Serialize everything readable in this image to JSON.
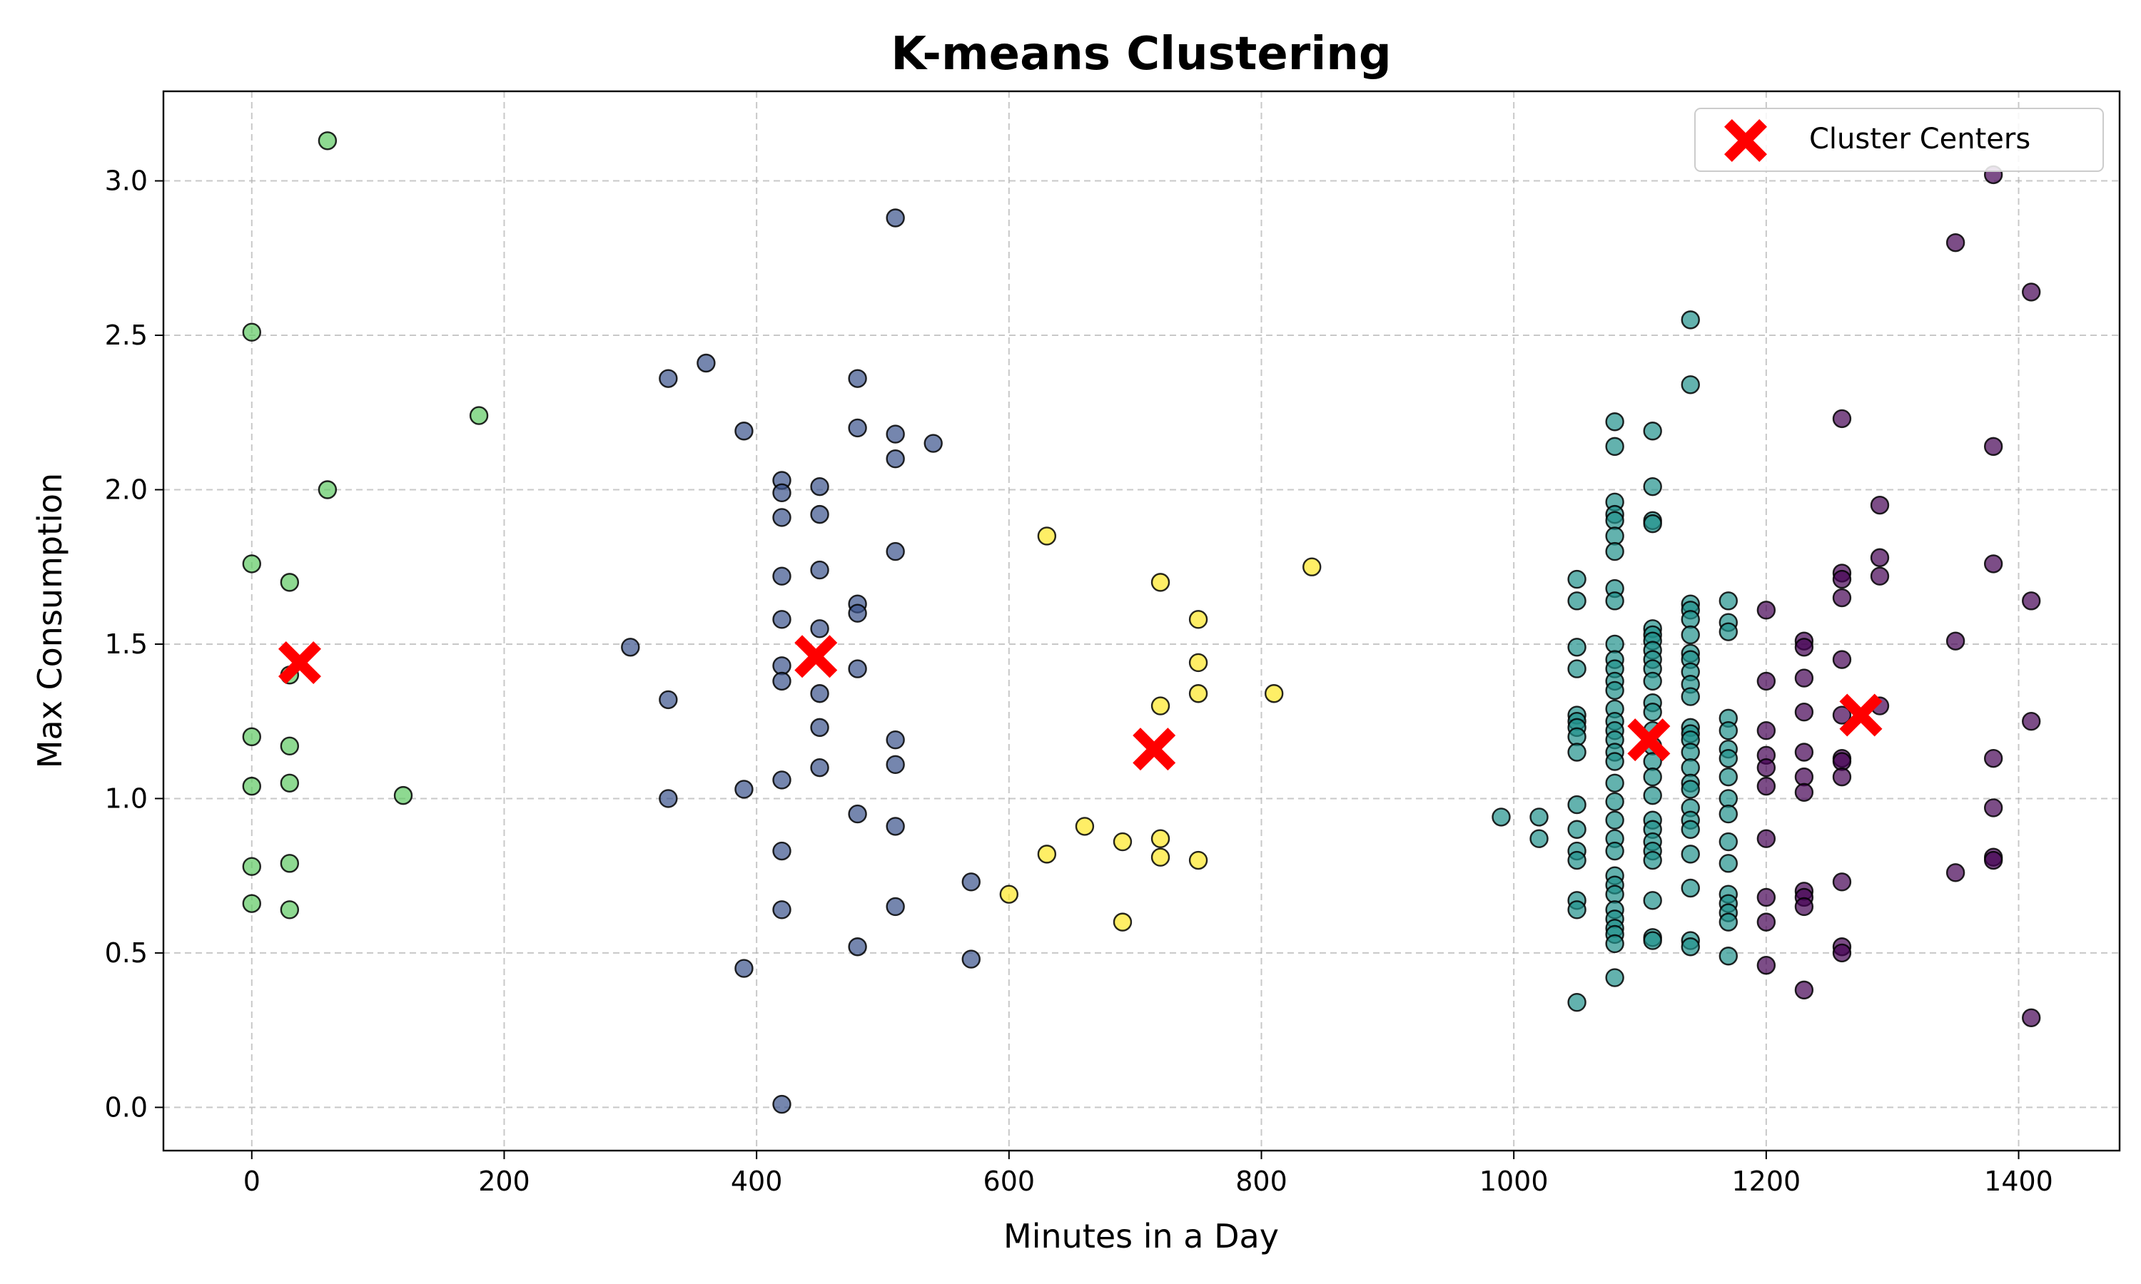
{
  "chart_data": {
    "type": "scatter",
    "title": "K-means Clustering",
    "xlabel": "Minutes in a Day",
    "ylabel": "Max Consumption",
    "xlim": [
      -70,
      1480
    ],
    "ylim": [
      -0.14,
      3.29
    ],
    "x_ticks": [
      0,
      200,
      400,
      600,
      800,
      1000,
      1200,
      1400
    ],
    "y_ticks": [
      0.0,
      0.5,
      1.0,
      1.5,
      2.0,
      2.5,
      3.0
    ],
    "x_tick_labels": [
      "0",
      "200",
      "400",
      "600",
      "800",
      "1000",
      "1200",
      "1400"
    ],
    "y_tick_labels": [
      "0.0",
      "0.5",
      "1.0",
      "1.5",
      "2.0",
      "2.5",
      "3.0"
    ],
    "grid": true,
    "legend": {
      "position": "top-right",
      "entries": [
        "Cluster Centers"
      ]
    },
    "colors": {
      "cluster_0": "#440154",
      "cluster_1": "#3b528b",
      "cluster_2": "#21918c",
      "cluster_3": "#5ec962",
      "cluster_4": "#fde725",
      "centers": "#ff0000"
    },
    "clusters": [
      {
        "color_key": "cluster_3",
        "points": [
          [
            60,
            3.13
          ],
          [
            0,
            2.51
          ],
          [
            180,
            2.24
          ],
          [
            60,
            2.0
          ],
          [
            0,
            1.76
          ],
          [
            30,
            1.7
          ],
          [
            30,
            1.4
          ],
          [
            0,
            1.2
          ],
          [
            30,
            1.17
          ],
          [
            30,
            1.05
          ],
          [
            0,
            1.04
          ],
          [
            120,
            1.01
          ],
          [
            0,
            0.78
          ],
          [
            30,
            0.79
          ],
          [
            0,
            0.66
          ],
          [
            30,
            0.64
          ]
        ]
      },
      {
        "color_key": "cluster_1",
        "points": [
          [
            510,
            2.88
          ],
          [
            330,
            2.36
          ],
          [
            360,
            2.41
          ],
          [
            480,
            2.36
          ],
          [
            390,
            2.19
          ],
          [
            480,
            2.2
          ],
          [
            510,
            2.18
          ],
          [
            540,
            2.15
          ],
          [
            510,
            2.1
          ],
          [
            420,
            2.03
          ],
          [
            420,
            1.99
          ],
          [
            450,
            2.01
          ],
          [
            420,
            1.91
          ],
          [
            450,
            1.92
          ],
          [
            510,
            1.8
          ],
          [
            450,
            1.74
          ],
          [
            420,
            1.72
          ],
          [
            480,
            1.63
          ],
          [
            480,
            1.6
          ],
          [
            420,
            1.58
          ],
          [
            450,
            1.55
          ],
          [
            300,
            1.49
          ],
          [
            420,
            1.43
          ],
          [
            480,
            1.42
          ],
          [
            420,
            1.38
          ],
          [
            450,
            1.34
          ],
          [
            330,
            1.32
          ],
          [
            450,
            1.23
          ],
          [
            510,
            1.19
          ],
          [
            450,
            1.1
          ],
          [
            510,
            1.11
          ],
          [
            420,
            1.06
          ],
          [
            390,
            1.03
          ],
          [
            330,
            1.0
          ],
          [
            480,
            0.95
          ],
          [
            510,
            0.91
          ],
          [
            420,
            0.83
          ],
          [
            570,
            0.73
          ],
          [
            420,
            0.64
          ],
          [
            510,
            0.65
          ],
          [
            480,
            0.52
          ],
          [
            570,
            0.48
          ],
          [
            390,
            0.45
          ],
          [
            420,
            0.01
          ]
        ]
      },
      {
        "color_key": "cluster_4",
        "points": [
          [
            630,
            1.85
          ],
          [
            840,
            1.75
          ],
          [
            720,
            1.7
          ],
          [
            750,
            1.58
          ],
          [
            750,
            1.44
          ],
          [
            750,
            1.34
          ],
          [
            810,
            1.34
          ],
          [
            720,
            1.3
          ],
          [
            660,
            0.91
          ],
          [
            720,
            0.87
          ],
          [
            690,
            0.86
          ],
          [
            630,
            0.82
          ],
          [
            720,
            0.81
          ],
          [
            750,
            0.8
          ],
          [
            600,
            0.69
          ],
          [
            690,
            0.6
          ]
        ]
      },
      {
        "color_key": "cluster_2",
        "points": [
          [
            1140,
            2.55
          ],
          [
            1140,
            2.34
          ],
          [
            1080,
            2.22
          ],
          [
            1110,
            2.19
          ],
          [
            1080,
            2.14
          ],
          [
            1110,
            2.01
          ],
          [
            1080,
            1.96
          ],
          [
            1080,
            1.92
          ],
          [
            1080,
            1.9
          ],
          [
            1110,
            1.9
          ],
          [
            1110,
            1.89
          ],
          [
            1080,
            1.85
          ],
          [
            1080,
            1.8
          ],
          [
            1050,
            1.71
          ],
          [
            1080,
            1.68
          ],
          [
            1050,
            1.64
          ],
          [
            1080,
            1.64
          ],
          [
            1170,
            1.64
          ],
          [
            1140,
            1.63
          ],
          [
            1140,
            1.61
          ],
          [
            1140,
            1.58
          ],
          [
            1170,
            1.57
          ],
          [
            1110,
            1.55
          ],
          [
            1170,
            1.54
          ],
          [
            1110,
            1.53
          ],
          [
            1140,
            1.53
          ],
          [
            1110,
            1.51
          ],
          [
            1080,
            1.5
          ],
          [
            1050,
            1.49
          ],
          [
            1110,
            1.48
          ],
          [
            1140,
            1.47
          ],
          [
            1080,
            1.45
          ],
          [
            1110,
            1.45
          ],
          [
            1140,
            1.45
          ],
          [
            1050,
            1.42
          ],
          [
            1080,
            1.42
          ],
          [
            1110,
            1.42
          ],
          [
            1140,
            1.41
          ],
          [
            1080,
            1.38
          ],
          [
            1110,
            1.38
          ],
          [
            1140,
            1.37
          ],
          [
            1080,
            1.35
          ],
          [
            1140,
            1.33
          ],
          [
            1110,
            1.31
          ],
          [
            1050,
            1.27
          ],
          [
            1080,
            1.29
          ],
          [
            1110,
            1.28
          ],
          [
            1170,
            1.26
          ],
          [
            1050,
            1.25
          ],
          [
            1080,
            1.25
          ],
          [
            1140,
            1.23
          ],
          [
            1050,
            1.23
          ],
          [
            1080,
            1.22
          ],
          [
            1110,
            1.22
          ],
          [
            1140,
            1.21
          ],
          [
            1050,
            1.2
          ],
          [
            1170,
            1.22
          ],
          [
            1080,
            1.19
          ],
          [
            1140,
            1.19
          ],
          [
            1110,
            1.17
          ],
          [
            1170,
            1.16
          ],
          [
            1050,
            1.15
          ],
          [
            1080,
            1.15
          ],
          [
            1140,
            1.15
          ],
          [
            1170,
            1.13
          ],
          [
            1080,
            1.12
          ],
          [
            1110,
            1.12
          ],
          [
            1140,
            1.1
          ],
          [
            1170,
            1.07
          ],
          [
            1110,
            1.07
          ],
          [
            1080,
            1.05
          ],
          [
            1140,
            1.05
          ],
          [
            1140,
            1.03
          ],
          [
            1110,
            1.01
          ],
          [
            1170,
            1.0
          ],
          [
            1080,
            0.99
          ],
          [
            1050,
            0.98
          ],
          [
            1140,
            0.97
          ],
          [
            1170,
            0.95
          ],
          [
            990,
            0.94
          ],
          [
            1020,
            0.94
          ],
          [
            1080,
            0.93
          ],
          [
            1110,
            0.93
          ],
          [
            1140,
            0.93
          ],
          [
            1050,
            0.9
          ],
          [
            1140,
            0.9
          ],
          [
            1110,
            0.9
          ],
          [
            1020,
            0.87
          ],
          [
            1080,
            0.87
          ],
          [
            1110,
            0.86
          ],
          [
            1170,
            0.86
          ],
          [
            1050,
            0.83
          ],
          [
            1080,
            0.83
          ],
          [
            1110,
            0.83
          ],
          [
            1140,
            0.82
          ],
          [
            1050,
            0.8
          ],
          [
            1110,
            0.8
          ],
          [
            1170,
            0.79
          ],
          [
            1080,
            0.75
          ],
          [
            1080,
            0.72
          ],
          [
            1140,
            0.71
          ],
          [
            1080,
            0.69
          ],
          [
            1170,
            0.69
          ],
          [
            1050,
            0.67
          ],
          [
            1110,
            0.67
          ],
          [
            1170,
            0.66
          ],
          [
            1050,
            0.64
          ],
          [
            1080,
            0.64
          ],
          [
            1170,
            0.63
          ],
          [
            1080,
            0.61
          ],
          [
            1170,
            0.6
          ],
          [
            1080,
            0.58
          ],
          [
            1080,
            0.56
          ],
          [
            1110,
            0.55
          ],
          [
            1110,
            0.54
          ],
          [
            1140,
            0.54
          ],
          [
            1080,
            0.53
          ],
          [
            1140,
            0.52
          ],
          [
            1170,
            0.49
          ],
          [
            1080,
            0.42
          ],
          [
            1050,
            0.34
          ]
        ]
      },
      {
        "color_key": "cluster_0",
        "points": [
          [
            1380,
            3.02
          ],
          [
            1350,
            2.8
          ],
          [
            1410,
            2.64
          ],
          [
            1260,
            2.23
          ],
          [
            1380,
            2.14
          ],
          [
            1290,
            1.95
          ],
          [
            1290,
            1.78
          ],
          [
            1380,
            1.76
          ],
          [
            1260,
            1.73
          ],
          [
            1290,
            1.72
          ],
          [
            1260,
            1.71
          ],
          [
            1260,
            1.65
          ],
          [
            1410,
            1.64
          ],
          [
            1200,
            1.61
          ],
          [
            1350,
            1.51
          ],
          [
            1230,
            1.51
          ],
          [
            1230,
            1.49
          ],
          [
            1260,
            1.45
          ],
          [
            1230,
            1.39
          ],
          [
            1200,
            1.38
          ],
          [
            1290,
            1.3
          ],
          [
            1230,
            1.28
          ],
          [
            1260,
            1.27
          ],
          [
            1410,
            1.25
          ],
          [
            1200,
            1.22
          ],
          [
            1230,
            1.15
          ],
          [
            1200,
            1.14
          ],
          [
            1260,
            1.13
          ],
          [
            1380,
            1.13
          ],
          [
            1260,
            1.12
          ],
          [
            1200,
            1.1
          ],
          [
            1230,
            1.07
          ],
          [
            1260,
            1.07
          ],
          [
            1200,
            1.04
          ],
          [
            1230,
            1.02
          ],
          [
            1380,
            0.97
          ],
          [
            1200,
            0.87
          ],
          [
            1380,
            0.81
          ],
          [
            1380,
            0.8
          ],
          [
            1350,
            0.76
          ],
          [
            1260,
            0.73
          ],
          [
            1230,
            0.7
          ],
          [
            1200,
            0.68
          ],
          [
            1230,
            0.68
          ],
          [
            1230,
            0.65
          ],
          [
            1200,
            0.6
          ],
          [
            1260,
            0.52
          ],
          [
            1260,
            0.5
          ],
          [
            1200,
            0.46
          ],
          [
            1230,
            0.38
          ],
          [
            1410,
            0.29
          ]
        ]
      }
    ],
    "centers": [
      [
        38,
        1.44
      ],
      [
        447,
        1.46
      ],
      [
        715,
        1.16
      ],
      [
        1107,
        1.19
      ],
      [
        1275,
        1.27
      ]
    ]
  }
}
